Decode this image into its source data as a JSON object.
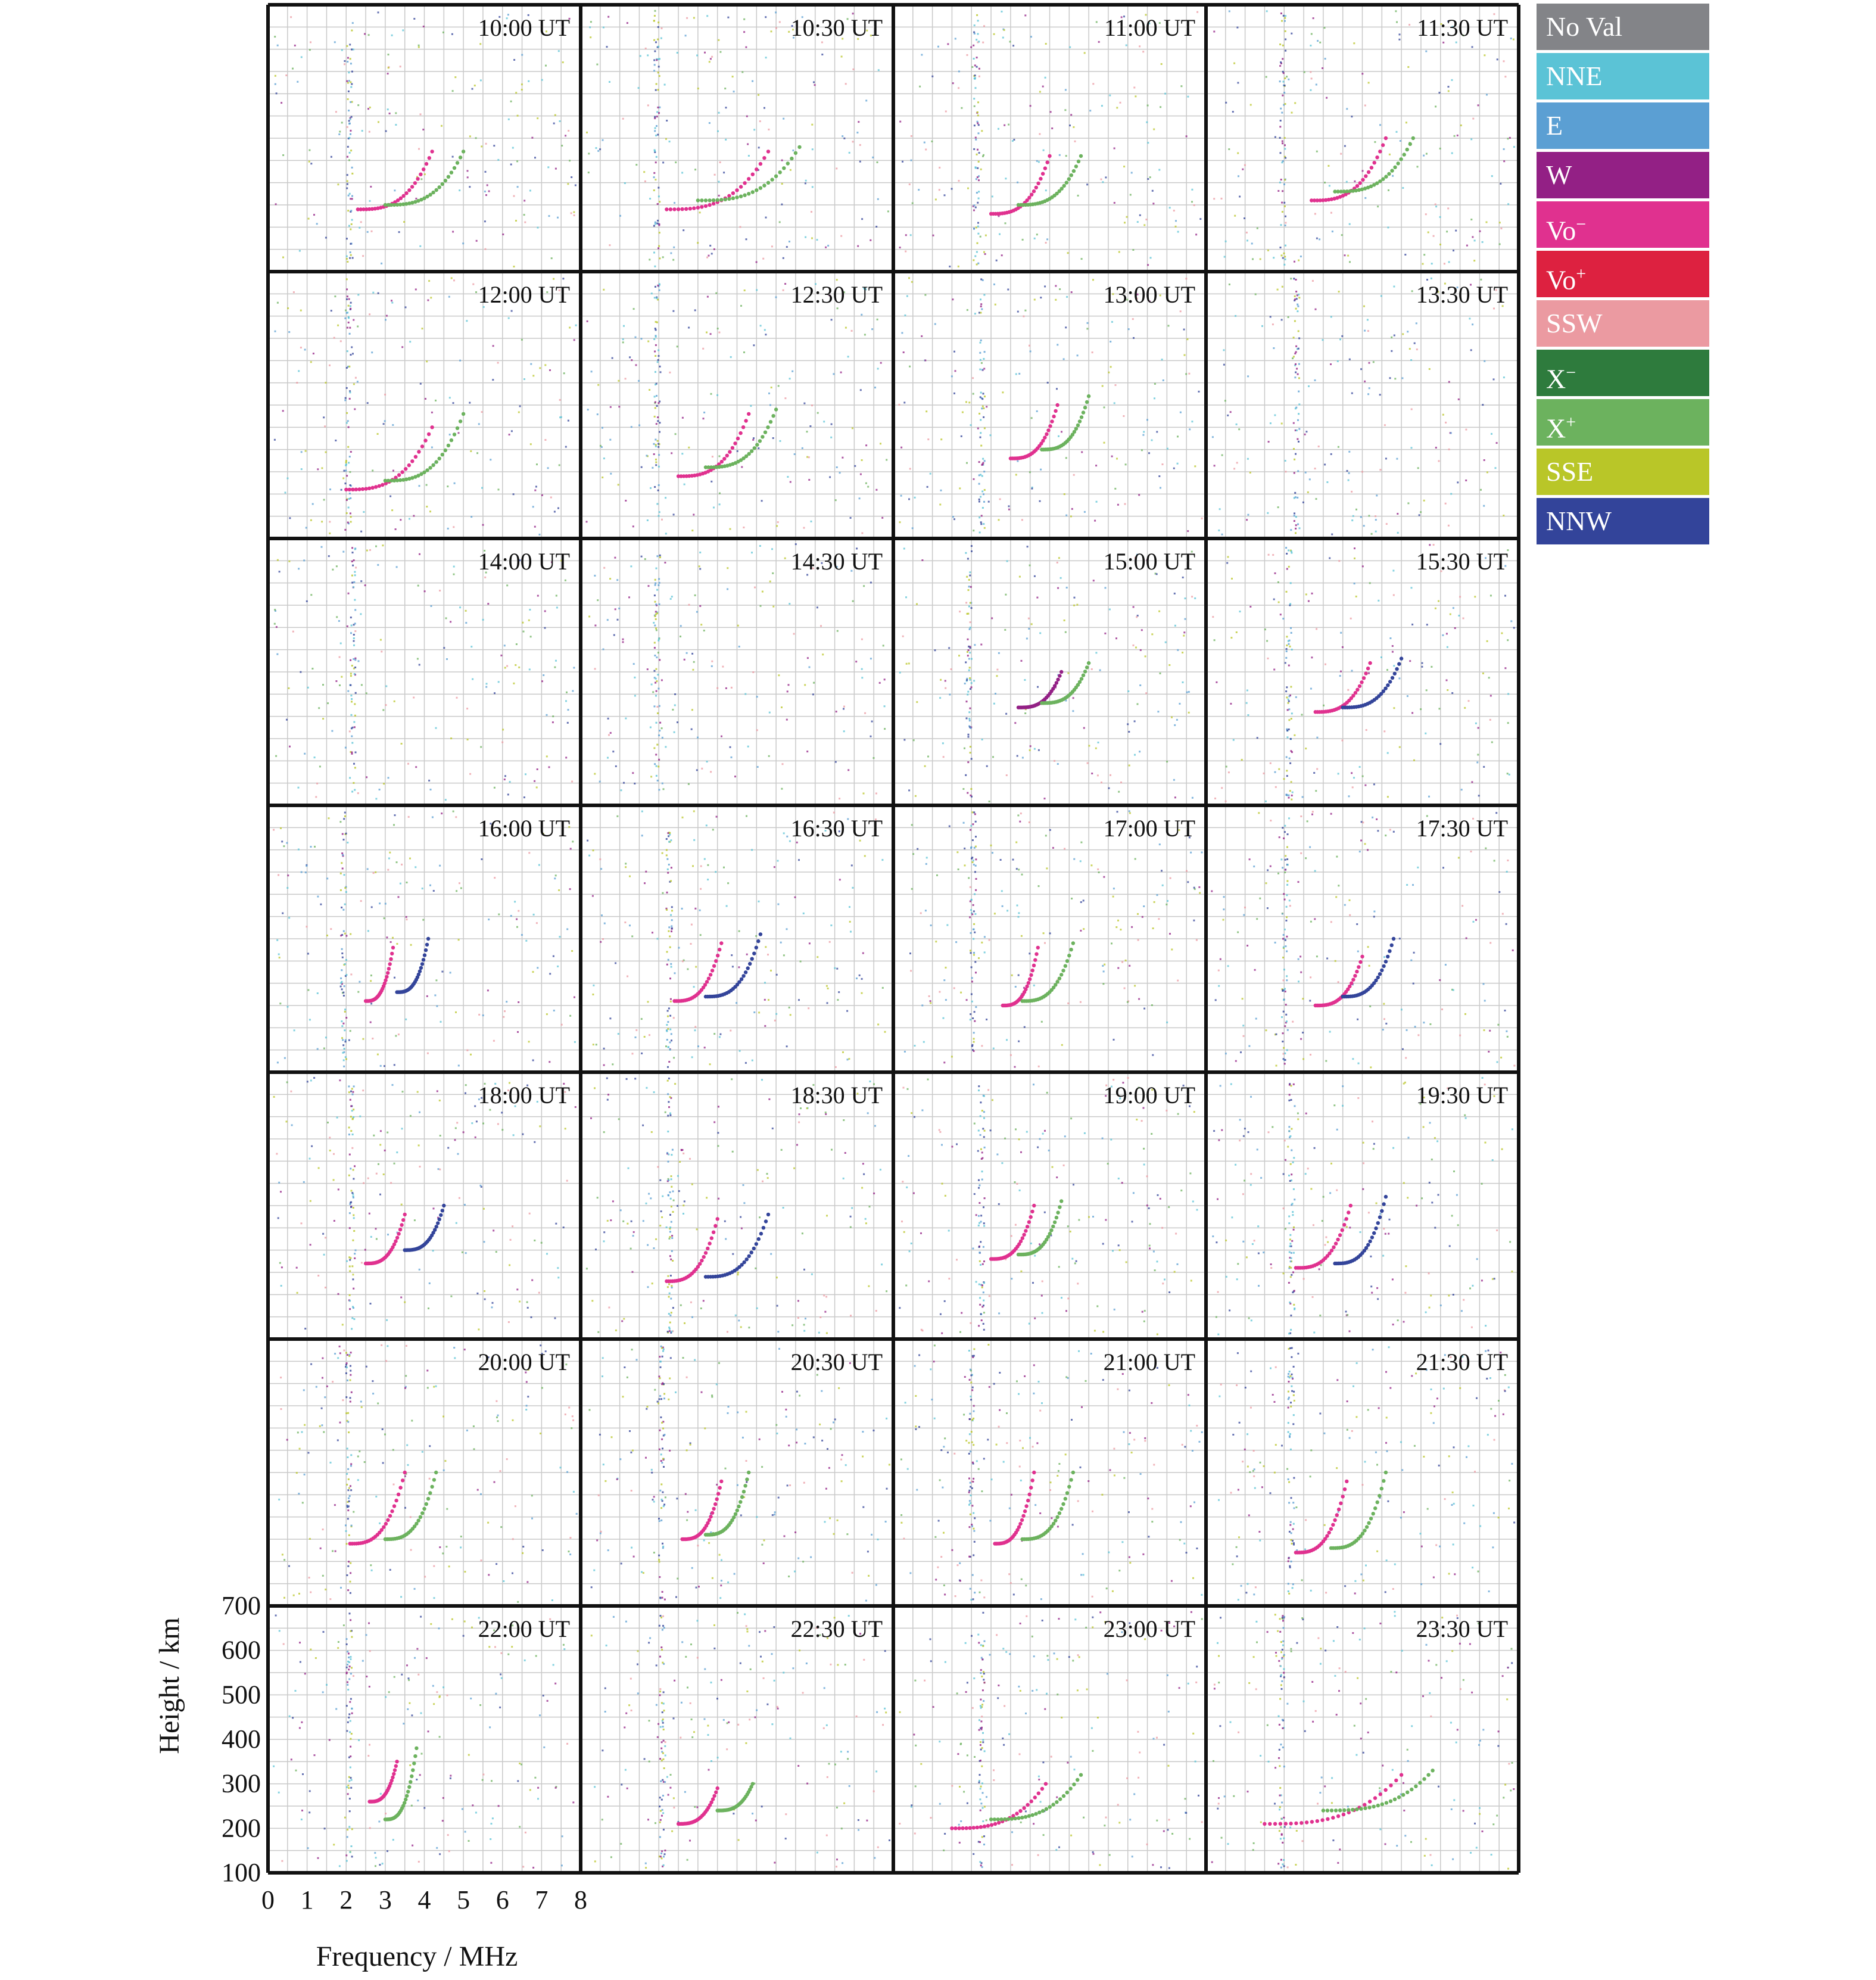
{
  "chart_data": {
    "type": "scatter",
    "title": "",
    "xlabel": "Frequency / MHz",
    "ylabel": "Height / km",
    "xlim": [
      0,
      8
    ],
    "ylim": [
      100,
      700
    ],
    "x_ticks": [
      "0",
      "1",
      "2",
      "3",
      "4",
      "5",
      "6",
      "7",
      "8"
    ],
    "y_ticks": [
      "700",
      "600",
      "500",
      "400",
      "300",
      "200",
      "100"
    ],
    "grid": true,
    "legend_position": "right",
    "legend": [
      {
        "label": "No Val",
        "color": "#838488"
      },
      {
        "label": "NNE",
        "color": "#5bc3d6"
      },
      {
        "label": "E",
        "color": "#5b9fd3"
      },
      {
        "label": "W",
        "color": "#932085"
      },
      {
        "label": "Vo⁻",
        "color": "#e0318f"
      },
      {
        "label": "Vo⁺",
        "color": "#dd2140"
      },
      {
        "label": "SSW",
        "color": "#eb9aa1"
      },
      {
        "label": "X⁻",
        "color": "#2e7b3d"
      },
      {
        "label": "X⁺",
        "color": "#6cb25e"
      },
      {
        "label": "SSE",
        "color": "#b9c628"
      },
      {
        "label": "NNW",
        "color": "#33449a"
      }
    ],
    "panels": [
      {
        "time": "10:00 UT",
        "traces": [
          {
            "series": "Vo⁻",
            "f0": 2.3,
            "h0": 240,
            "fc": 4.2,
            "hc": 370
          },
          {
            "series": "X⁺",
            "f0": 3.0,
            "h0": 250,
            "fc": 5.0,
            "hc": 370
          }
        ]
      },
      {
        "time": "10:30 UT",
        "traces": [
          {
            "series": "Vo⁻",
            "f0": 2.2,
            "h0": 240,
            "fc": 4.8,
            "hc": 370
          },
          {
            "series": "X⁺",
            "f0": 3.0,
            "h0": 260,
            "fc": 5.6,
            "hc": 380
          }
        ]
      },
      {
        "time": "11:00 UT",
        "traces": [
          {
            "series": "Vo⁻",
            "f0": 2.5,
            "h0": 230,
            "fc": 4.0,
            "hc": 360
          },
          {
            "series": "X⁺",
            "f0": 3.2,
            "h0": 250,
            "fc": 4.8,
            "hc": 360
          }
        ]
      },
      {
        "time": "11:30 UT",
        "traces": [
          {
            "series": "Vo⁻",
            "f0": 2.7,
            "h0": 260,
            "fc": 4.6,
            "hc": 400
          },
          {
            "series": "X⁺",
            "f0": 3.3,
            "h0": 280,
            "fc": 5.3,
            "hc": 400
          }
        ]
      },
      {
        "time": "12:00 UT",
        "traces": [
          {
            "series": "Vo⁻",
            "f0": 2.0,
            "h0": 210,
            "fc": 4.2,
            "hc": 350
          },
          {
            "series": "X⁺",
            "f0": 3.0,
            "h0": 230,
            "fc": 5.0,
            "hc": 380
          }
        ]
      },
      {
        "time": "12:30 UT",
        "traces": [
          {
            "series": "Vo⁻",
            "f0": 2.5,
            "h0": 240,
            "fc": 4.3,
            "hc": 380
          },
          {
            "series": "X⁺",
            "f0": 3.2,
            "h0": 260,
            "fc": 5.0,
            "hc": 390
          }
        ]
      },
      {
        "time": "13:00 UT",
        "traces": [
          {
            "series": "Vo⁻",
            "f0": 3.0,
            "h0": 280,
            "fc": 4.2,
            "hc": 400
          },
          {
            "series": "X⁺",
            "f0": 3.8,
            "h0": 300,
            "fc": 5.0,
            "hc": 420
          }
        ]
      },
      {
        "time": "13:30 UT",
        "traces": []
      },
      {
        "time": "14:00 UT",
        "traces": []
      },
      {
        "time": "14:30 UT",
        "traces": []
      },
      {
        "time": "15:00 UT",
        "traces": [
          {
            "series": "W",
            "f0": 3.2,
            "h0": 320,
            "fc": 4.3,
            "hc": 400
          },
          {
            "series": "X⁺",
            "f0": 3.8,
            "h0": 330,
            "fc": 5.0,
            "hc": 420
          }
        ]
      },
      {
        "time": "15:30 UT",
        "traces": [
          {
            "series": "Vo⁻",
            "f0": 2.8,
            "h0": 310,
            "fc": 4.2,
            "hc": 420
          },
          {
            "series": "NNW",
            "f0": 3.5,
            "h0": 320,
            "fc": 5.0,
            "hc": 430
          }
        ]
      },
      {
        "time": "16:00 UT",
        "traces": [
          {
            "series": "Vo⁻",
            "f0": 2.5,
            "h0": 260,
            "fc": 3.2,
            "hc": 380
          },
          {
            "series": "NNW",
            "f0": 3.3,
            "h0": 280,
            "fc": 4.1,
            "hc": 400
          }
        ]
      },
      {
        "time": "16:30 UT",
        "traces": [
          {
            "series": "Vo⁻",
            "f0": 2.4,
            "h0": 260,
            "fc": 3.6,
            "hc": 390
          },
          {
            "series": "NNW",
            "f0": 3.2,
            "h0": 270,
            "fc": 4.6,
            "hc": 410
          }
        ]
      },
      {
        "time": "17:00 UT",
        "traces": [
          {
            "series": "Vo⁻",
            "f0": 2.8,
            "h0": 250,
            "fc": 3.7,
            "hc": 380
          },
          {
            "series": "X⁺",
            "f0": 3.3,
            "h0": 260,
            "fc": 4.6,
            "hc": 390
          }
        ]
      },
      {
        "time": "17:30 UT",
        "traces": [
          {
            "series": "Vo⁻",
            "f0": 2.8,
            "h0": 250,
            "fc": 4.0,
            "hc": 360
          },
          {
            "series": "NNW",
            "f0": 3.5,
            "h0": 270,
            "fc": 4.8,
            "hc": 400
          }
        ]
      },
      {
        "time": "18:00 UT",
        "traces": [
          {
            "series": "Vo⁻",
            "f0": 2.5,
            "h0": 270,
            "fc": 3.5,
            "hc": 380
          },
          {
            "series": "NNW",
            "f0": 3.5,
            "h0": 300,
            "fc": 4.5,
            "hc": 400
          }
        ]
      },
      {
        "time": "18:30 UT",
        "traces": [
          {
            "series": "Vo⁻",
            "f0": 2.2,
            "h0": 230,
            "fc": 3.5,
            "hc": 370
          },
          {
            "series": "NNW",
            "f0": 3.2,
            "h0": 240,
            "fc": 4.8,
            "hc": 380
          }
        ]
      },
      {
        "time": "19:00 UT",
        "traces": [
          {
            "series": "Vo⁻",
            "f0": 2.5,
            "h0": 280,
            "fc": 3.6,
            "hc": 400
          },
          {
            "series": "X⁺",
            "f0": 3.2,
            "h0": 290,
            "fc": 4.3,
            "hc": 410
          }
        ]
      },
      {
        "time": "19:30 UT",
        "traces": [
          {
            "series": "Vo⁻",
            "f0": 2.3,
            "h0": 260,
            "fc": 3.7,
            "hc": 400
          },
          {
            "series": "NNW",
            "f0": 3.3,
            "h0": 270,
            "fc": 4.6,
            "hc": 420
          }
        ]
      },
      {
        "time": "20:00 UT",
        "traces": [
          {
            "series": "Vo⁻",
            "f0": 2.1,
            "h0": 240,
            "fc": 3.5,
            "hc": 400
          },
          {
            "series": "X⁺",
            "f0": 3.0,
            "h0": 250,
            "fc": 4.3,
            "hc": 400
          }
        ]
      },
      {
        "time": "20:30 UT",
        "traces": [
          {
            "series": "Vo⁻",
            "f0": 2.6,
            "h0": 250,
            "fc": 3.6,
            "hc": 380
          },
          {
            "series": "X⁺",
            "f0": 3.2,
            "h0": 260,
            "fc": 4.3,
            "hc": 400
          }
        ]
      },
      {
        "time": "21:00 UT",
        "traces": [
          {
            "series": "Vo⁻",
            "f0": 2.6,
            "h0": 240,
            "fc": 3.6,
            "hc": 400
          },
          {
            "series": "X⁺",
            "f0": 3.3,
            "h0": 250,
            "fc": 4.6,
            "hc": 400
          }
        ]
      },
      {
        "time": "21:30 UT",
        "traces": [
          {
            "series": "Vo⁻",
            "f0": 2.3,
            "h0": 220,
            "fc": 3.6,
            "hc": 380
          },
          {
            "series": "X⁺",
            "f0": 3.2,
            "h0": 230,
            "fc": 4.6,
            "hc": 400
          }
        ]
      },
      {
        "time": "22:00 UT",
        "traces": [
          {
            "series": "Vo⁻",
            "f0": 2.6,
            "h0": 260,
            "fc": 3.3,
            "hc": 350
          },
          {
            "series": "X⁺",
            "f0": 3.0,
            "h0": 220,
            "fc": 3.8,
            "hc": 380
          }
        ]
      },
      {
        "time": "22:30 UT",
        "traces": [
          {
            "series": "Vo⁻",
            "f0": 2.5,
            "h0": 210,
            "fc": 3.5,
            "hc": 290
          },
          {
            "series": "X⁺",
            "f0": 3.5,
            "h0": 240,
            "fc": 4.4,
            "hc": 300
          }
        ]
      },
      {
        "time": "23:00 UT",
        "traces": [
          {
            "series": "Vo⁻",
            "f0": 1.5,
            "h0": 200,
            "fc": 3.9,
            "hc": 300
          },
          {
            "series": "X⁺",
            "f0": 2.5,
            "h0": 220,
            "fc": 4.8,
            "hc": 320
          }
        ]
      },
      {
        "time": "23:30 UT",
        "traces": [
          {
            "series": "Vo⁻",
            "f0": 1.5,
            "h0": 210,
            "fc": 5.0,
            "hc": 320
          },
          {
            "series": "X⁺",
            "f0": 3.0,
            "h0": 240,
            "fc": 5.8,
            "hc": 330
          }
        ]
      }
    ]
  }
}
